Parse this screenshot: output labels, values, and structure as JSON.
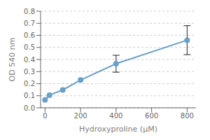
{
  "chart_data": {
    "type": "line",
    "xlabel": "Hydroxyproline (μM)",
    "ylabel": "OD 540 nm",
    "x": [
      0,
      25,
      100,
      200,
      400,
      800
    ],
    "values": [
      0.065,
      0.105,
      0.148,
      0.23,
      0.365,
      0.56
    ],
    "yerr": [
      0,
      0,
      0,
      0,
      0.07,
      0.12
    ],
    "color": "#6aa0c7",
    "marker": "circle",
    "xlim": [
      -25,
      850
    ],
    "ylim": [
      0,
      0.8
    ],
    "xticks": [
      0,
      200,
      400,
      600,
      800
    ],
    "yticks": [
      {
        "value": 0,
        "label": "0.0"
      },
      0.1,
      0.2,
      0.3,
      0.4,
      0.5,
      0.6,
      0.7,
      0.8
    ],
    "grid": true
  }
}
